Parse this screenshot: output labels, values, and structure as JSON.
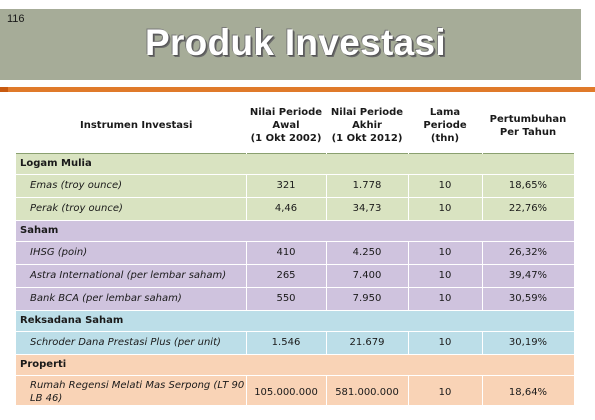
{
  "slide": {
    "page_number": "116",
    "title": "Produk Investasi"
  },
  "table": {
    "headers": [
      "Instrumen Investasi",
      "Nilai Periode Awal (1 Okt 2002)",
      "Nilai Periode Akhir (1 Okt 2012)",
      "Lama Periode (thn)",
      "Pertumbuhan Per Tahun"
    ],
    "header_lines": [
      [
        "Instrumen Investasi"
      ],
      [
        "Nilai Periode",
        "Awal",
        "(1 Okt 2002)"
      ],
      [
        "Nilai Periode",
        "Akhir",
        "(1 Okt 2012)"
      ],
      [
        "Lama Periode",
        "(thn)"
      ],
      [
        "Pertumbuhan",
        "Per Tahun"
      ]
    ],
    "groups": [
      {
        "name": "Logam Mulia",
        "color": "#d9e3c1",
        "rows": [
          {
            "instrument": "Emas (troy ounce)",
            "start": "321",
            "end": "1.778",
            "years": "10",
            "growth": "18,65%"
          },
          {
            "instrument": "Perak (troy ounce)",
            "start": "4,46",
            "end": "34,73",
            "years": "10",
            "growth": "22,76%"
          }
        ]
      },
      {
        "name": "Saham",
        "color": "#cfc3de",
        "rows": [
          {
            "instrument": "IHSG (poin)",
            "start": "410",
            "end": "4.250",
            "years": "10",
            "growth": "26,32%"
          },
          {
            "instrument": "Astra International (per lembar saham)",
            "start": "265",
            "end": "7.400",
            "years": "10",
            "growth": "39,47%"
          },
          {
            "instrument": "Bank BCA (per lembar saham)",
            "start": "550",
            "end": "7.950",
            "years": "10",
            "growth": "30,59%"
          }
        ]
      },
      {
        "name": "Reksadana Saham",
        "color": "#bcdee8",
        "rows": [
          {
            "instrument": "Schroder Dana Prestasi Plus (per unit)",
            "start": "1.546",
            "end": "21.679",
            "years": "10",
            "growth": "30,19%"
          }
        ]
      },
      {
        "name": "Properti",
        "color": "#f9d3b6",
        "rows": [
          {
            "instrument": "Rumah Regensi Melati Mas Serpong (LT 90 LB 46)",
            "start": "105.000.000",
            "end": "581.000.000",
            "years": "10",
            "growth": "18,64%"
          }
        ]
      }
    ]
  }
}
